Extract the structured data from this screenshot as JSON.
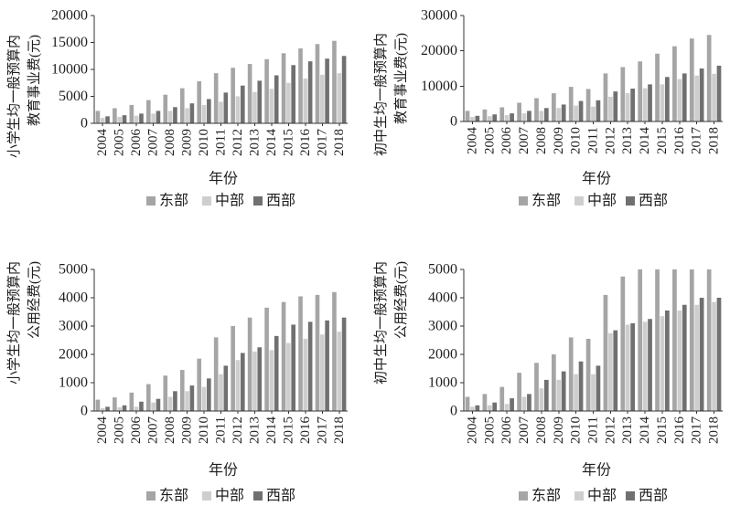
{
  "chart_data": [
    {
      "type": "bar",
      "categories": [
        "2004",
        "2005",
        "2006",
        "2007",
        "2008",
        "2009",
        "2010",
        "2011",
        "2012",
        "2013",
        "2014",
        "2015",
        "2016",
        "2017",
        "2018"
      ],
      "series": [
        {
          "name": "东部",
          "color": "#a5a5a5",
          "values": [
            2300,
            2800,
            3400,
            4300,
            5300,
            6500,
            7800,
            9300,
            10300,
            11000,
            11900,
            13000,
            13900,
            14700,
            15300
          ]
        },
        {
          "name": "中部",
          "color": "#cecece",
          "values": [
            1000,
            1200,
            1400,
            1800,
            2300,
            2800,
            3400,
            4000,
            5000,
            5800,
            6400,
            7500,
            8300,
            9000,
            9300
          ]
        },
        {
          "name": "西部",
          "color": "#707070",
          "values": [
            1300,
            1500,
            1800,
            2300,
            3000,
            3700,
            4500,
            5700,
            7000,
            7900,
            8900,
            10800,
            11500,
            12000,
            12500
          ]
        }
      ],
      "xlabel": "年份",
      "ylabel": [
        "小学生均一般预算内",
        "教育事业费(元)"
      ],
      "ylim": [
        0,
        20000
      ],
      "yticks": [
        0,
        5000,
        10000,
        15000,
        20000
      ],
      "legend": "bottom",
      "grid": false
    },
    {
      "type": "bar",
      "categories": [
        "2004",
        "2005",
        "2006",
        "2007",
        "2008",
        "2009",
        "2010",
        "2011",
        "2012",
        "2013",
        "2014",
        "2015",
        "2016",
        "2017",
        "2018"
      ],
      "series": [
        {
          "name": "东部",
          "color": "#a5a5a5",
          "values": [
            3000,
            3400,
            4000,
            5300,
            6600,
            8000,
            9800,
            9200,
            13600,
            15400,
            17000,
            19200,
            21300,
            23500,
            24500
          ]
        },
        {
          "name": "中部",
          "color": "#cecece",
          "values": [
            1300,
            1500,
            1800,
            2300,
            3000,
            3800,
            4500,
            4200,
            7000,
            8000,
            9400,
            10500,
            12000,
            13000,
            13500
          ]
        },
        {
          "name": "西部",
          "color": "#707070",
          "values": [
            1600,
            2000,
            2300,
            3000,
            3800,
            4800,
            5800,
            6000,
            8500,
            9300,
            10500,
            12600,
            13600,
            15000,
            15800
          ]
        }
      ],
      "xlabel": "年份",
      "ylabel": [
        "初中生均一般预算内",
        "教育事业费(元)"
      ],
      "ylim": [
        0,
        30000
      ],
      "yticks": [
        0,
        10000,
        20000,
        30000
      ],
      "legend": "bottom",
      "grid": false
    },
    {
      "type": "bar",
      "categories": [
        "2004",
        "2005",
        "2006",
        "2007",
        "2008",
        "2009",
        "2010",
        "2011",
        "2012",
        "2013",
        "2014",
        "2015",
        "2016",
        "2017",
        "2018"
      ],
      "series": [
        {
          "name": "东部",
          "color": "#a5a5a5",
          "values": [
            400,
            480,
            650,
            950,
            1250,
            1450,
            1850,
            2600,
            3000,
            3300,
            3650,
            3850,
            4050,
            4100,
            4200
          ]
        },
        {
          "name": "中部",
          "color": "#cecece",
          "values": [
            100,
            130,
            150,
            300,
            500,
            700,
            850,
            1300,
            1800,
            2100,
            2150,
            2400,
            2550,
            2700,
            2800
          ]
        },
        {
          "name": "西部",
          "color": "#707070",
          "values": [
            150,
            200,
            330,
            430,
            700,
            900,
            1150,
            1600,
            2050,
            2250,
            2650,
            3050,
            3150,
            3200,
            3300
          ]
        }
      ],
      "xlabel": "年份",
      "ylabel": [
        "小学生均一般预算内",
        "公用经费(元)"
      ],
      "ylim": [
        0,
        5000
      ],
      "yticks": [
        0,
        1000,
        2000,
        3000,
        4000,
        5000
      ],
      "legend": "bottom",
      "grid": false
    },
    {
      "type": "bar",
      "categories": [
        "2004",
        "2005",
        "2006",
        "2007",
        "2008",
        "2009",
        "2010",
        "2011",
        "2012",
        "2013",
        "2014",
        "2015",
        "2016",
        "2017",
        "2018"
      ],
      "series": [
        {
          "name": "东部",
          "color": "#a5a5a5",
          "values": [
            500,
            600,
            850,
            1350,
            1700,
            2000,
            2600,
            2550,
            4100,
            4750,
            5000,
            5000,
            5000,
            5000,
            5000
          ]
        },
        {
          "name": "中部",
          "color": "#cecece",
          "values": [
            150,
            200,
            250,
            500,
            800,
            1100,
            1300,
            1300,
            2750,
            3050,
            3150,
            3350,
            3550,
            3750,
            3850
          ]
        },
        {
          "name": "西部",
          "color": "#707070",
          "values": [
            200,
            300,
            450,
            600,
            1100,
            1400,
            1750,
            1600,
            2850,
            3100,
            3250,
            3550,
            3750,
            4000,
            4000
          ]
        }
      ],
      "xlabel": "年份",
      "ylabel": [
        "初中生均一般预算内",
        "公用经费(元)"
      ],
      "ylim": [
        0,
        5000
      ],
      "yticks": [
        0,
        1000,
        2000,
        3000,
        4000,
        5000
      ],
      "legend": "bottom",
      "grid": false
    }
  ]
}
